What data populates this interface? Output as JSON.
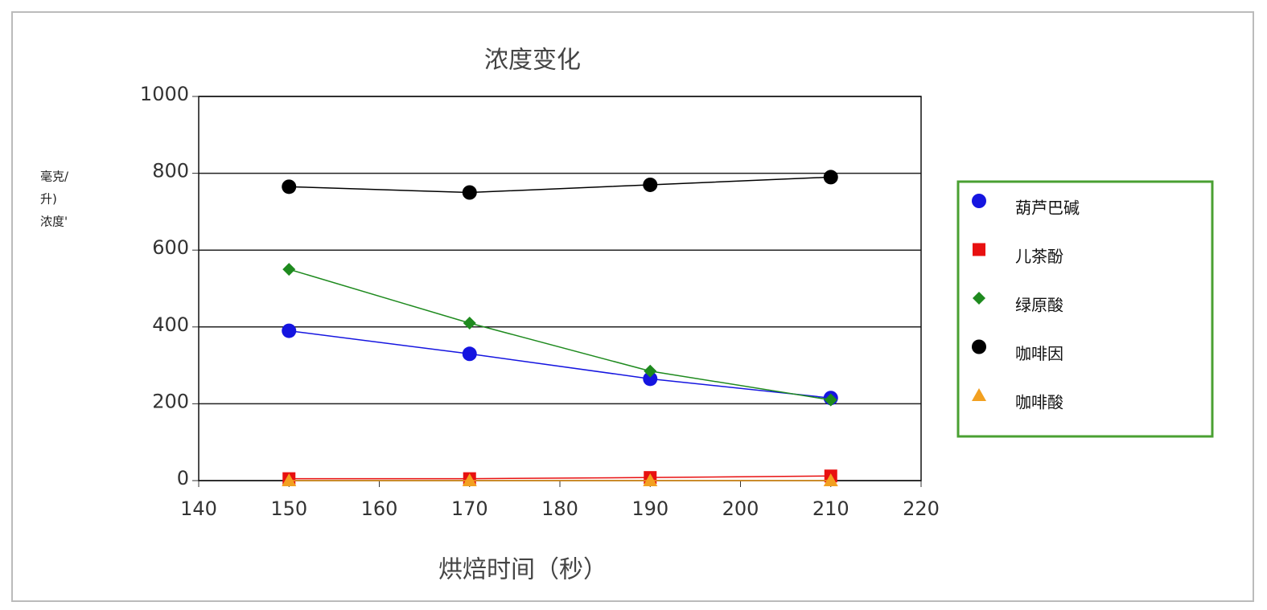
{
  "chart_data": {
    "type": "line",
    "title": "浓度变化",
    "xlabel": "烘焙时间（秒）",
    "ylabel": [
      "毫克/",
      "升)",
      "浓度'"
    ],
    "x": [
      150,
      170,
      190,
      210
    ],
    "xlim": [
      140,
      220
    ],
    "xticks": [
      140,
      150,
      160,
      170,
      180,
      190,
      200,
      210,
      220
    ],
    "ylim": [
      0,
      1000
    ],
    "yticks": [
      0,
      200,
      400,
      600,
      800,
      1000
    ],
    "grid": true,
    "legend": "right",
    "series": [
      {
        "name": "葫芦巴碱",
        "color": "#1515e0",
        "marker": "circle",
        "values": [
          390,
          330,
          265,
          215
        ]
      },
      {
        "name": "儿茶酚",
        "color": "#e81010",
        "marker": "square",
        "values": [
          5,
          5,
          8,
          12
        ]
      },
      {
        "name": "绿原酸",
        "color": "#1e8a1e",
        "marker": "diamond",
        "values": [
          550,
          410,
          285,
          210
        ]
      },
      {
        "name": "咖啡因",
        "color": "#000000",
        "marker": "circle",
        "values": [
          765,
          750,
          770,
          790
        ]
      },
      {
        "name": "咖啡酸",
        "color": "#f2a020",
        "marker": "triangle",
        "values": [
          0,
          0,
          0,
          0
        ]
      }
    ]
  }
}
